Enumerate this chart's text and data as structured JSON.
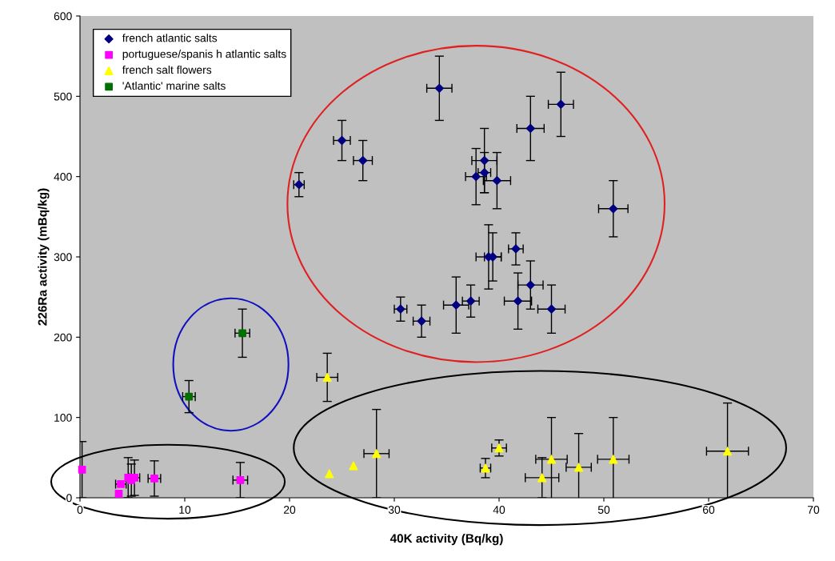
{
  "chart_data": {
    "type": "scatter",
    "xlabel": "40K activity (Bq/kg)",
    "ylabel": "226Ra activity (mBq/kg)",
    "xlim": [
      0,
      70
    ],
    "xticks": [
      0,
      10,
      20,
      30,
      40,
      50,
      60,
      70
    ],
    "ylim": [
      0,
      600
    ],
    "yticks": [
      0,
      100,
      200,
      300,
      400,
      500,
      600
    ],
    "grid": false,
    "legend": "top left",
    "series": [
      {
        "name": "french atlantic salts",
        "color": "#000080",
        "marker": "diamond",
        "x": [
          20.9,
          25,
          27,
          34.3,
          37.8,
          38.6,
          38.6,
          39.8,
          43,
          45.9,
          50.9,
          30.6,
          32.6,
          35.9,
          37.3,
          39,
          39.4,
          41.6,
          41.8,
          43,
          45
        ],
        "values": [
          390,
          445,
          420,
          510,
          400,
          420,
          405,
          395,
          460,
          490,
          360,
          235,
          220,
          240,
          245,
          300,
          300,
          310,
          245,
          265,
          235
        ],
        "errors": [
          15,
          25,
          25,
          40,
          35,
          40,
          25,
          35,
          40,
          40,
          35,
          15,
          20,
          35,
          20,
          40,
          30,
          20,
          35,
          30,
          30
        ],
        "xerrors": [
          0.5,
          0.8,
          0.9,
          1.2,
          1.0,
          1.2,
          0.6,
          1.3,
          1.3,
          1.2,
          1.4,
          0.6,
          0.8,
          1.2,
          0.8,
          1.2,
          0.8,
          0.7,
          1.3,
          1.2,
          1.3
        ]
      },
      {
        "name": "portuguese/spanis h atlantic salts",
        "color": "#ff00ff",
        "marker": "square",
        "x": [
          0.2,
          3.7,
          3.9,
          4.6,
          4.9,
          5.2,
          7.1,
          15.3
        ],
        "values": [
          35,
          5,
          17,
          25,
          22,
          25,
          24,
          22
        ],
        "errors": [
          35,
          null,
          null,
          25,
          20,
          22,
          22,
          22
        ],
        "xerrors": [
          null,
          null,
          0.5,
          null,
          null,
          0.5,
          0.6,
          0.7
        ]
      },
      {
        "name": "french salt flowers",
        "color": "#ffff00",
        "marker": "triangle",
        "x": [
          23.6,
          23.8,
          26.1,
          28.3,
          38.7,
          40,
          44.1,
          45,
          47.6,
          50.9,
          61.8
        ],
        "values": [
          150,
          30,
          40,
          55,
          37,
          62,
          25,
          48,
          38,
          48,
          58
        ],
        "errors": [
          30,
          null,
          null,
          55,
          12,
          10,
          25,
          52,
          42,
          52,
          60
        ],
        "xerrors": [
          1.0,
          null,
          null,
          1.2,
          0.5,
          0.7,
          1.6,
          1.5,
          1.2,
          1.5,
          2.0
        ]
      },
      {
        "name": "'Atlantic' marine salts",
        "color": "#007000",
        "marker": "square",
        "x": [
          10.4,
          15.5
        ],
        "values": [
          126,
          205
        ],
        "errors": [
          20,
          30
        ],
        "xerrors": [
          0.6,
          0.7
        ]
      }
    ]
  }
}
